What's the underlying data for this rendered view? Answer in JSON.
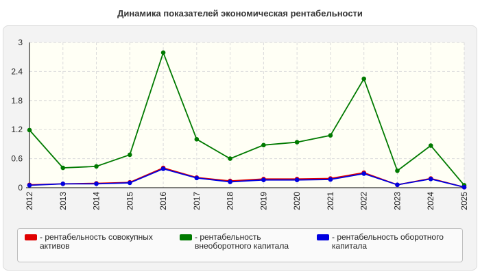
{
  "page": {
    "title": "Динамика показателей экономическая рентабельности"
  },
  "chart_data": {
    "type": "line",
    "title": "Динамика показателей экономическая рентабельности",
    "xlabel": "",
    "ylabel": "",
    "ylim": [
      0,
      3
    ],
    "yticks": [
      "0",
      "0.6",
      "1.2",
      "1.8",
      "2.4",
      "3"
    ],
    "categories": [
      "2012",
      "2013",
      "2014",
      "2015",
      "2016",
      "2017",
      "2018",
      "2019",
      "2020",
      "2021",
      "2022",
      "2023",
      "2024",
      "2025"
    ],
    "grid": true,
    "legend_position": "bottom",
    "series": [
      {
        "name": "- рентабельность совокупных активов",
        "color": "#e00000",
        "values": [
          0.06,
          0.08,
          0.09,
          0.11,
          0.41,
          0.21,
          0.14,
          0.18,
          0.18,
          0.19,
          0.31,
          0.06,
          0.19,
          0.01
        ]
      },
      {
        "name": "- рентабельность внеоборотного капитала",
        "color": "#007a00",
        "values": [
          1.19,
          0.41,
          0.44,
          0.68,
          2.79,
          1.0,
          0.6,
          0.88,
          0.94,
          1.08,
          2.25,
          0.35,
          0.87,
          0.05
        ]
      },
      {
        "name": "- рентабельность оборотного капитала",
        "color": "#0000e0",
        "values": [
          0.05,
          0.08,
          0.08,
          0.1,
          0.39,
          0.2,
          0.12,
          0.16,
          0.16,
          0.17,
          0.29,
          0.06,
          0.18,
          0.01
        ]
      }
    ]
  }
}
